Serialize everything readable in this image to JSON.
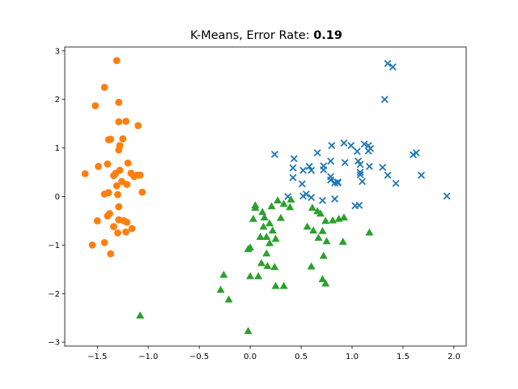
{
  "chart_data": {
    "type": "scatter",
    "title_prefix": "K-Means, Error Rate: ",
    "title_value": "0.19",
    "xlabel": "",
    "ylabel": "",
    "xlim": [
      -1.82,
      2.12
    ],
    "ylim": [
      -3.08,
      3.08
    ],
    "x_ticks": [
      -1.5,
      -1.0,
      -0.5,
      0.0,
      0.5,
      1.0,
      1.5,
      2.0
    ],
    "x_tick_labels": [
      "−1.5",
      "−1.0",
      "−0.5",
      "0.0",
      "0.5",
      "1.0",
      "1.5",
      "2.0"
    ],
    "y_ticks": [
      3,
      2,
      1,
      0,
      -1,
      -2,
      -3
    ],
    "y_tick_labels": [
      "3",
      "2",
      "1",
      "0",
      "−1",
      "−2",
      "−3"
    ],
    "grid": false,
    "legend": "none",
    "series": [
      {
        "color": "#ff7f0e",
        "marker": "circle",
        "points": [
          [
            -1.31,
            2.8
          ],
          [
            -1.43,
            2.25
          ],
          [
            -1.52,
            1.87
          ],
          [
            -1.29,
            1.94
          ],
          [
            -1.29,
            1.54
          ],
          [
            -1.22,
            1.55
          ],
          [
            -1.1,
            1.46
          ],
          [
            -1.37,
            1.18
          ],
          [
            -1.39,
            1.17
          ],
          [
            -1.25,
            1.19
          ],
          [
            -1.28,
            1.05
          ],
          [
            -1.29,
            0.96
          ],
          [
            -1.2,
            0.69
          ],
          [
            -1.49,
            0.62
          ],
          [
            -1.4,
            0.67
          ],
          [
            -1.32,
            0.48
          ],
          [
            -1.28,
            0.54
          ],
          [
            -1.34,
            0.43
          ],
          [
            -1.17,
            0.48
          ],
          [
            -1.11,
            0.44
          ],
          [
            -1.08,
            0.44
          ],
          [
            -1.14,
            0.41
          ],
          [
            -1.62,
            0.47
          ],
          [
            -1.26,
            0.31
          ],
          [
            -1.21,
            0.25
          ],
          [
            -1.31,
            0.22
          ],
          [
            -1.43,
            0.05
          ],
          [
            -1.39,
            0.08
          ],
          [
            -1.3,
            0.04
          ],
          [
            -1.06,
            0.09
          ],
          [
            -1.29,
            -0.21
          ],
          [
            -1.38,
            -0.35
          ],
          [
            -1.4,
            -0.4
          ],
          [
            -1.5,
            -0.5
          ],
          [
            -1.29,
            -0.48
          ],
          [
            -1.24,
            -0.5
          ],
          [
            -1.21,
            -0.53
          ],
          [
            -1.34,
            -0.62
          ],
          [
            -1.16,
            -0.66
          ],
          [
            -1.3,
            -0.75
          ],
          [
            -1.22,
            -0.73
          ],
          [
            -1.43,
            -0.95
          ],
          [
            -1.55,
            -1.0
          ],
          [
            -1.37,
            -1.18
          ]
        ]
      },
      {
        "color": "#1f77b4",
        "marker": "x",
        "points": [
          [
            1.35,
            2.74
          ],
          [
            1.4,
            2.67
          ],
          [
            1.32,
            2.0
          ],
          [
            0.92,
            1.1
          ],
          [
            0.99,
            1.05
          ],
          [
            1.12,
            1.08
          ],
          [
            1.16,
            1.05
          ],
          [
            0.8,
            1.05
          ],
          [
            1.16,
            0.94
          ],
          [
            1.18,
            0.99
          ],
          [
            1.05,
            0.93
          ],
          [
            0.24,
            0.87
          ],
          [
            0.66,
            0.9
          ],
          [
            1.6,
            0.86
          ],
          [
            1.63,
            0.9
          ],
          [
            0.43,
            0.78
          ],
          [
            0.93,
            0.7
          ],
          [
            0.79,
            0.73
          ],
          [
            1.06,
            0.73
          ],
          [
            1.08,
            0.66
          ],
          [
            1.17,
            0.62
          ],
          [
            0.72,
            0.63
          ],
          [
            0.58,
            0.62
          ],
          [
            0.42,
            0.59
          ],
          [
            1.3,
            0.6
          ],
          [
            0.52,
            0.54
          ],
          [
            0.6,
            0.54
          ],
          [
            0.72,
            0.55
          ],
          [
            1.08,
            0.5
          ],
          [
            1.08,
            0.45
          ],
          [
            1.35,
            0.44
          ],
          [
            1.68,
            0.44
          ],
          [
            0.79,
            0.41
          ],
          [
            0.42,
            0.39
          ],
          [
            0.51,
            0.26
          ],
          [
            0.83,
            0.28
          ],
          [
            0.86,
            0.28
          ],
          [
            1.1,
            0.31
          ],
          [
            1.43,
            0.27
          ],
          [
            0.86,
            0.3
          ],
          [
            0.79,
            0.34
          ],
          [
            0.37,
            0.0
          ],
          [
            0.55,
            0.05
          ],
          [
            0.52,
            0.01
          ],
          [
            0.6,
            -0.02
          ],
          [
            0.71,
            -0.08
          ],
          [
            0.83,
            -0.05
          ],
          [
            1.03,
            -0.19
          ],
          [
            1.07,
            -0.18
          ],
          [
            1.93,
            0.01
          ]
        ]
      },
      {
        "color": "#2ca02c",
        "marker": "triangle",
        "points": [
          [
            0.4,
            -0.06
          ],
          [
            0.27,
            -0.08
          ],
          [
            0.33,
            -0.15
          ],
          [
            0.21,
            -0.2
          ],
          [
            0.05,
            -0.18
          ],
          [
            0.05,
            -0.23
          ],
          [
            0.12,
            -0.32
          ],
          [
            0.39,
            -0.22
          ],
          [
            0.61,
            -0.23
          ],
          [
            0.66,
            -0.3
          ],
          [
            0.69,
            -0.35
          ],
          [
            0.14,
            -0.43
          ],
          [
            0.03,
            -0.46
          ],
          [
            0.3,
            -0.44
          ],
          [
            0.92,
            -0.43
          ],
          [
            0.81,
            -0.49
          ],
          [
            0.87,
            -0.46
          ],
          [
            0.74,
            -0.5
          ],
          [
            0.56,
            -0.62
          ],
          [
            0.13,
            -0.62
          ],
          [
            0.19,
            -0.55
          ],
          [
            0.62,
            -0.7
          ],
          [
            0.71,
            -0.71
          ],
          [
            0.67,
            -0.85
          ],
          [
            0.75,
            -0.92
          ],
          [
            0.22,
            -0.7
          ],
          [
            0.1,
            -0.83
          ],
          [
            0.16,
            -0.83
          ],
          [
            0.19,
            -0.96
          ],
          [
            0.25,
            -0.87
          ],
          [
            0.0,
            -1.05
          ],
          [
            -0.02,
            -1.08
          ],
          [
            0.16,
            -1.17
          ],
          [
            0.91,
            -0.93
          ],
          [
            1.17,
            -0.74
          ],
          [
            0.72,
            -1.22
          ],
          [
            0.11,
            -1.37
          ],
          [
            0.17,
            -1.43
          ],
          [
            0.24,
            -1.45
          ],
          [
            0.6,
            -1.44
          ],
          [
            -0.26,
            -1.61
          ],
          [
            0.0,
            -1.64
          ],
          [
            0.08,
            -1.64
          ],
          [
            0.25,
            -1.84
          ],
          [
            0.33,
            -1.84
          ],
          [
            0.71,
            -1.7
          ],
          [
            0.74,
            -1.79
          ],
          [
            -0.29,
            -1.92
          ],
          [
            -0.21,
            -2.12
          ],
          [
            -1.08,
            -2.45
          ],
          [
            -0.02,
            -2.77
          ]
        ]
      }
    ]
  }
}
